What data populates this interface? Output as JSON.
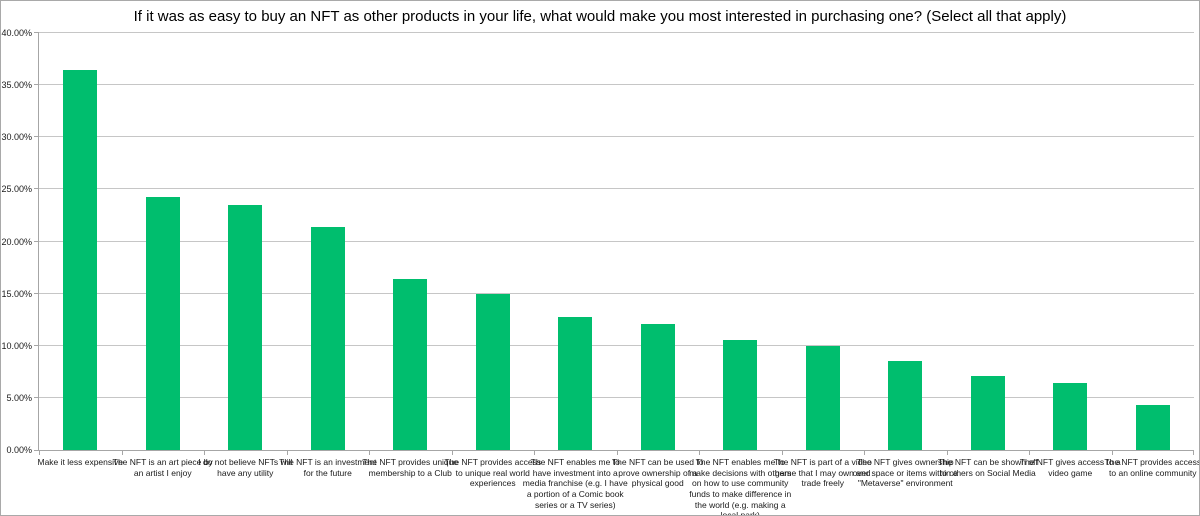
{
  "window": {
    "background": "#ffffff",
    "border_color": "#a9a9a9"
  },
  "chart_data": {
    "type": "bar",
    "title": "If it was as easy to buy an NFT as other products in your life, what would make you most interested in purchasing one? (Select all that apply)",
    "categories": [
      "Make it less expensive",
      "The NFT is an art piece by an artist I enjoy",
      "I do not believe NFTs will have any utility",
      "The NFT is an investment for the future",
      "The NFT provides unique membership to a Club",
      "The NFT provides access to unique real world experiences",
      "The NFT enables me to have investment into a media franchise (e.g. I have a portion of a Comic book series or a TV series)",
      "The NFT can be used to prove ownership of a physical good",
      "The NFT enables me to make decisions with others on how to use community funds to make difference in the world (e.g. making a local park)",
      "The NFT is part of a video game that I may own and trade freely",
      "The NFT gives ownership over space or items within a \"Metaverse\" environment",
      "The NFT can be shown off to others on Social Media",
      "The NFT gives access to a video game",
      "The NFT provides access to an online community"
    ],
    "values": [
      36.5,
      24.3,
      23.5,
      21.4,
      16.4,
      15.0,
      12.8,
      12.1,
      10.6,
      10.0,
      8.5,
      7.1,
      6.4,
      4.3
    ],
    "unit": "%",
    "xlabel": "",
    "ylabel": "",
    "ylim": [
      0,
      40
    ],
    "ytick_step": 5,
    "ytick_labels": [
      "0.00%",
      "5.00%",
      "10.00%",
      "15.00%",
      "20.00%",
      "25.00%",
      "30.00%",
      "35.00%",
      "40.00%"
    ],
    "grid": true,
    "legend_position": "none",
    "bar_color": "#00be6e",
    "gridline_color": "#c6c6c6",
    "axis_color": "#a6a6a6"
  }
}
